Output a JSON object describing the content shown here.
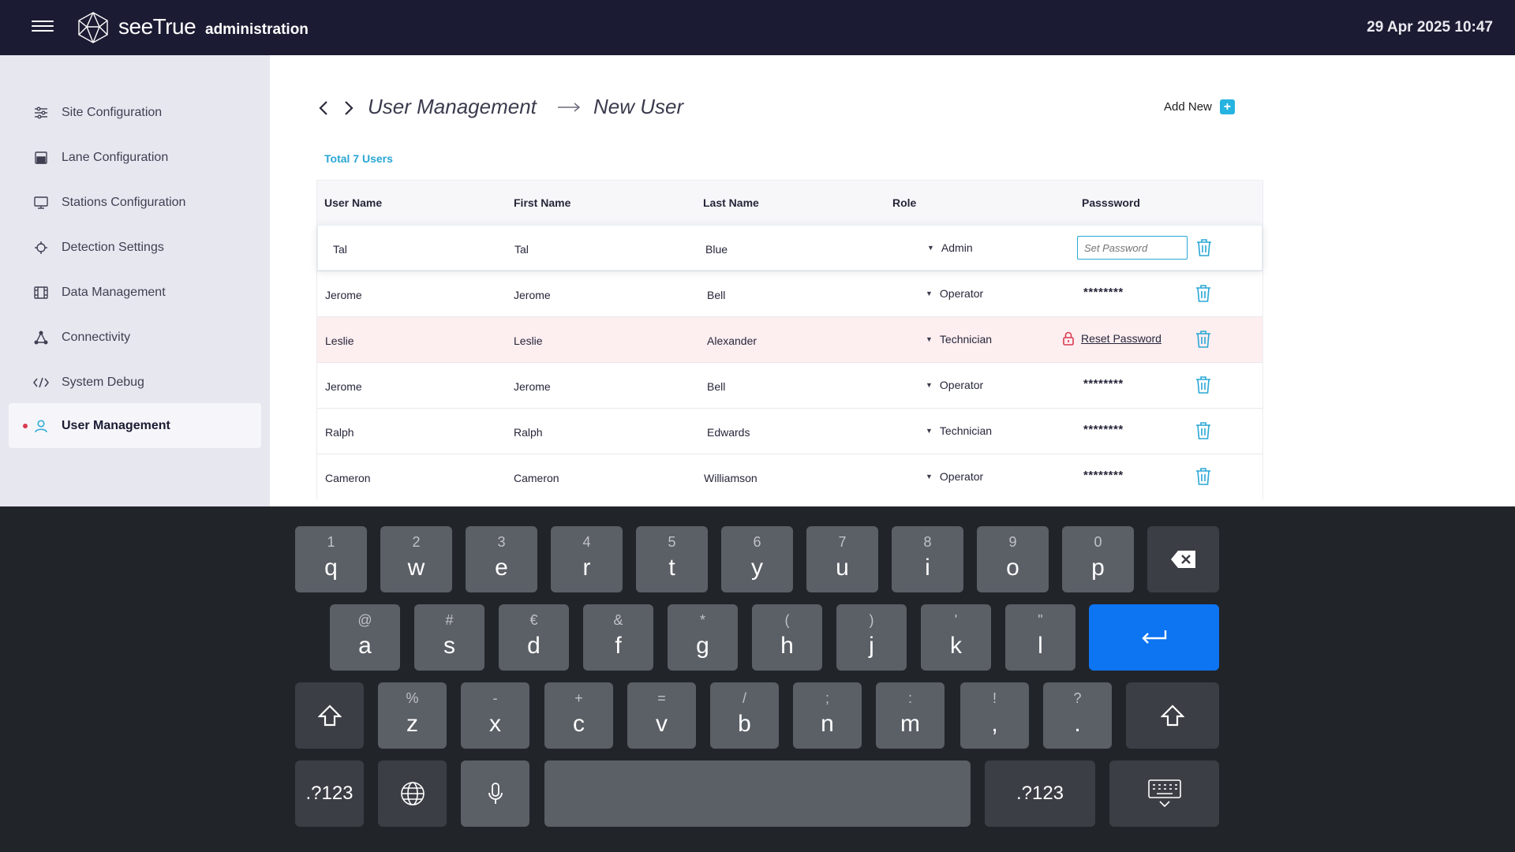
{
  "header": {
    "brand": "seeTrue",
    "subtitle": "administration",
    "datetime": "29 Apr 2025 10:47",
    "menu_icon": "hamburger-icon"
  },
  "sidebar": {
    "items": [
      {
        "label": "Site Configuration",
        "icon": "sliders-icon",
        "active": false
      },
      {
        "label": "Lane Configuration",
        "icon": "lane-icon",
        "active": false
      },
      {
        "label": "Stations Configuration",
        "icon": "monitor-icon",
        "active": false
      },
      {
        "label": "Detection Settings",
        "icon": "crosshair-icon",
        "active": false
      },
      {
        "label": "Data Management",
        "icon": "film-icon",
        "active": false
      },
      {
        "label": "Connectivity",
        "icon": "network-icon",
        "active": false
      },
      {
        "label": "System Debug",
        "icon": "code-icon",
        "active": false
      },
      {
        "label": "User Management",
        "icon": "user-icon",
        "active": true
      }
    ]
  },
  "main": {
    "breadcrumb": {
      "current": "User Management",
      "next": "New User"
    },
    "add_new": "Add New",
    "total": "Total 7 Users",
    "columns": {
      "username": "User Name",
      "first": "First Name",
      "last": "Last Name",
      "role": "Role",
      "password": "Passsword"
    },
    "rows": [
      {
        "username": "Tal",
        "first": "Tal",
        "last": "Blue",
        "role": "Admin",
        "password_mode": "input",
        "password_placeholder": "Set Password"
      },
      {
        "username": "Jerome",
        "first": "Jerome",
        "last": "Bell",
        "role": "Operator",
        "password_mode": "mask",
        "password": "********"
      },
      {
        "username": "Leslie",
        "first": "Leslie",
        "last": "Alexander",
        "role": "Technician",
        "password_mode": "reset",
        "reset_label": "Reset Password"
      },
      {
        "username": "Jerome",
        "first": "Jerome",
        "last": "Bell",
        "role": "Operator",
        "password_mode": "mask",
        "password": "********"
      },
      {
        "username": "Ralph",
        "first": "Ralph",
        "last": "Edwards",
        "role": "Technician",
        "password_mode": "mask",
        "password": "********"
      },
      {
        "username": "Cameron",
        "first": "Cameron",
        "last": "Williamson",
        "role": "Operator",
        "password_mode": "mask",
        "password": "********"
      }
    ]
  },
  "keyboard": {
    "row1": [
      {
        "hint": "1",
        "ch": "q"
      },
      {
        "hint": "2",
        "ch": "w"
      },
      {
        "hint": "3",
        "ch": "e"
      },
      {
        "hint": "4",
        "ch": "r"
      },
      {
        "hint": "5",
        "ch": "t"
      },
      {
        "hint": "6",
        "ch": "y"
      },
      {
        "hint": "7",
        "ch": "u"
      },
      {
        "hint": "8",
        "ch": "i"
      },
      {
        "hint": "9",
        "ch": "o"
      },
      {
        "hint": "0",
        "ch": "p"
      }
    ],
    "row2": [
      {
        "hint": "@",
        "ch": "a"
      },
      {
        "hint": "#",
        "ch": "s"
      },
      {
        "hint": "€",
        "ch": "d"
      },
      {
        "hint": "&",
        "ch": "f"
      },
      {
        "hint": "*",
        "ch": "g"
      },
      {
        "hint": "(",
        "ch": "h"
      },
      {
        "hint": ")",
        "ch": "j"
      },
      {
        "hint": "'",
        "ch": "k"
      },
      {
        "hint": "\"",
        "ch": "l"
      }
    ],
    "row3": [
      {
        "hint": "%",
        "ch": "z"
      },
      {
        "hint": "-",
        "ch": "x"
      },
      {
        "hint": "+",
        "ch": "c"
      },
      {
        "hint": "=",
        "ch": "v"
      },
      {
        "hint": "/",
        "ch": "b"
      },
      {
        "hint": ";",
        "ch": "n"
      },
      {
        "hint": ":",
        "ch": "m"
      },
      {
        "hint": "!",
        "ch": ","
      },
      {
        "hint": "?",
        "ch": "."
      }
    ],
    "symbols_label": ".?123",
    "symbols_label_right": ".?123"
  },
  "colors": {
    "accent": "#2aa7d6",
    "header_bg": "#1b1b33",
    "enter_key": "#0d74f2",
    "highlight_row": "#fdeef0"
  }
}
